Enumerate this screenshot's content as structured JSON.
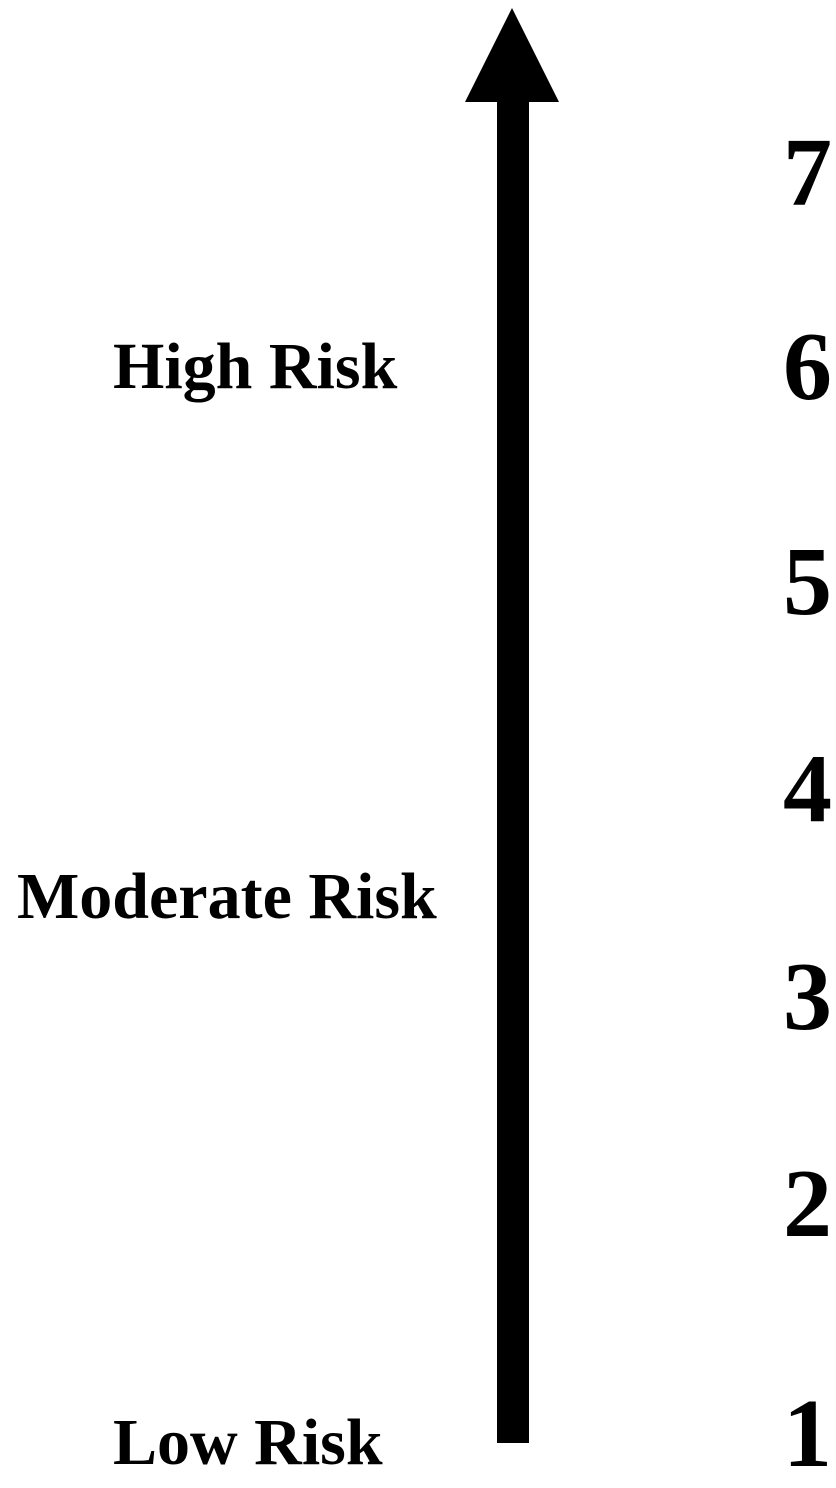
{
  "labels": {
    "high": "High Risk",
    "moderate": "Moderate Risk",
    "low": "Low Risk"
  },
  "scale": [
    "7",
    "6",
    "5",
    "4",
    "3",
    "2",
    "1"
  ],
  "colors": {
    "foreground": "#000000",
    "background": "#ffffff"
  },
  "icons": {
    "arrow": "up-arrow-icon"
  }
}
